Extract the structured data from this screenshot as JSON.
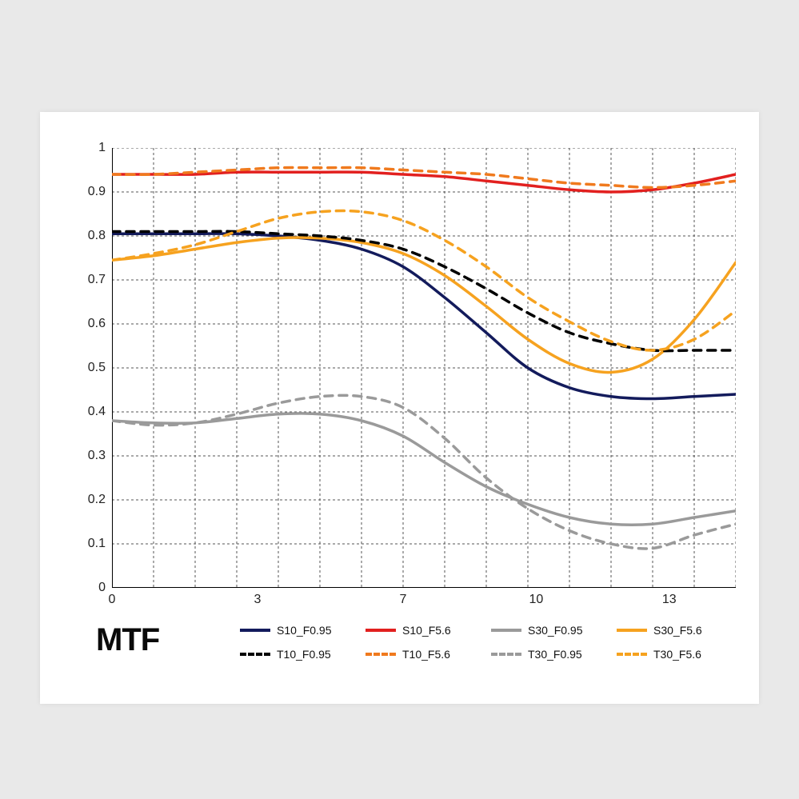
{
  "title": "MTF",
  "chart": {
    "type": "line",
    "background_color": "#ffffff",
    "page_background": "#e9e9e9",
    "grid_color": "#555555",
    "axis_color": "#000000",
    "axis_width": 2,
    "grid_dash": "3,3",
    "xlim": [
      0,
      15
    ],
    "ylim": [
      0,
      1
    ],
    "y_ticks": [
      0,
      0.1,
      0.2,
      0.3,
      0.4,
      0.5,
      0.6,
      0.7,
      0.8,
      0.9,
      1
    ],
    "y_tick_labels": [
      "0",
      "0.1",
      "0.2",
      "0.3",
      "0.4",
      "0.5",
      "0.6",
      "0.7",
      "0.8",
      "0.9",
      "1"
    ],
    "x_grid_positions": [
      0,
      1,
      2,
      3,
      4,
      5,
      6,
      7,
      8,
      9,
      10,
      11,
      12,
      13,
      14,
      15
    ],
    "x_tick_labels": [
      {
        "pos": 0,
        "label": "0"
      },
      {
        "pos": 3.5,
        "label": "3"
      },
      {
        "pos": 7,
        "label": "7"
      },
      {
        "pos": 10.2,
        "label": "10"
      },
      {
        "pos": 13.4,
        "label": "13"
      }
    ],
    "tick_fontsize": 16,
    "legend_fontsize": 14,
    "title_fontsize": 40,
    "title_weight": 900,
    "line_width": 3.5,
    "series": [
      {
        "id": "S10_F0.95",
        "label": "S10_F0.95",
        "color": "#131b5c",
        "dash": "none",
        "points": [
          [
            0,
            0.805
          ],
          [
            1,
            0.805
          ],
          [
            2,
            0.805
          ],
          [
            3,
            0.805
          ],
          [
            4,
            0.8
          ],
          [
            5,
            0.79
          ],
          [
            6,
            0.77
          ],
          [
            7,
            0.73
          ],
          [
            8,
            0.66
          ],
          [
            9,
            0.58
          ],
          [
            10,
            0.5
          ],
          [
            11,
            0.455
          ],
          [
            12,
            0.435
          ],
          [
            13,
            0.43
          ],
          [
            14,
            0.435
          ],
          [
            15,
            0.44
          ]
        ]
      },
      {
        "id": "S10_F5.6",
        "label": "S10_F5.6",
        "color": "#e2201f",
        "dash": "none",
        "points": [
          [
            0,
            0.94
          ],
          [
            1,
            0.94
          ],
          [
            2,
            0.94
          ],
          [
            3,
            0.945
          ],
          [
            4,
            0.945
          ],
          [
            5,
            0.945
          ],
          [
            6,
            0.945
          ],
          [
            7,
            0.94
          ],
          [
            8,
            0.935
          ],
          [
            9,
            0.925
          ],
          [
            10,
            0.915
          ],
          [
            11,
            0.905
          ],
          [
            12,
            0.9
          ],
          [
            13,
            0.905
          ],
          [
            14,
            0.92
          ],
          [
            15,
            0.94
          ]
        ]
      },
      {
        "id": "S30_F0.95",
        "label": "S30_F0.95",
        "color": "#9a9a9a",
        "dash": "none",
        "points": [
          [
            0,
            0.38
          ],
          [
            1,
            0.375
          ],
          [
            2,
            0.375
          ],
          [
            3,
            0.385
          ],
          [
            4,
            0.395
          ],
          [
            5,
            0.395
          ],
          [
            6,
            0.38
          ],
          [
            7,
            0.345
          ],
          [
            8,
            0.285
          ],
          [
            9,
            0.23
          ],
          [
            10,
            0.19
          ],
          [
            11,
            0.16
          ],
          [
            12,
            0.145
          ],
          [
            13,
            0.145
          ],
          [
            14,
            0.16
          ],
          [
            15,
            0.175
          ]
        ]
      },
      {
        "id": "S30_F5.6",
        "label": "S30_F5.6",
        "color": "#f6a21f",
        "dash": "none",
        "points": [
          [
            0,
            0.745
          ],
          [
            1,
            0.755
          ],
          [
            2,
            0.77
          ],
          [
            3,
            0.785
          ],
          [
            4,
            0.795
          ],
          [
            5,
            0.795
          ],
          [
            6,
            0.785
          ],
          [
            7,
            0.76
          ],
          [
            8,
            0.71
          ],
          [
            9,
            0.64
          ],
          [
            10,
            0.565
          ],
          [
            11,
            0.51
          ],
          [
            12,
            0.49
          ],
          [
            13,
            0.52
          ],
          [
            14,
            0.61
          ],
          [
            15,
            0.74
          ]
        ]
      },
      {
        "id": "T10_F0.95",
        "label": "T10_F0.95",
        "color": "#000000",
        "dash": "10,8",
        "points": [
          [
            0,
            0.81
          ],
          [
            1,
            0.81
          ],
          [
            2,
            0.81
          ],
          [
            3,
            0.81
          ],
          [
            4,
            0.805
          ],
          [
            5,
            0.8
          ],
          [
            6,
            0.79
          ],
          [
            7,
            0.77
          ],
          [
            8,
            0.73
          ],
          [
            9,
            0.68
          ],
          [
            10,
            0.625
          ],
          [
            11,
            0.58
          ],
          [
            12,
            0.555
          ],
          [
            13,
            0.54
          ],
          [
            14,
            0.54
          ],
          [
            15,
            0.54
          ]
        ]
      },
      {
        "id": "T10_F5.6",
        "label": "T10_F5.6",
        "color": "#f07a1e",
        "dash": "10,8",
        "points": [
          [
            0,
            0.94
          ],
          [
            1,
            0.94
          ],
          [
            2,
            0.945
          ],
          [
            3,
            0.95
          ],
          [
            4,
            0.955
          ],
          [
            5,
            0.955
          ],
          [
            6,
            0.955
          ],
          [
            7,
            0.95
          ],
          [
            8,
            0.945
          ],
          [
            9,
            0.94
          ],
          [
            10,
            0.93
          ],
          [
            11,
            0.92
          ],
          [
            12,
            0.915
          ],
          [
            13,
            0.91
          ],
          [
            14,
            0.915
          ],
          [
            15,
            0.925
          ]
        ]
      },
      {
        "id": "T30_F0.95",
        "label": "T30_F0.95",
        "color": "#9a9a9a",
        "dash": "10,8",
        "points": [
          [
            0,
            0.38
          ],
          [
            1,
            0.37
          ],
          [
            2,
            0.375
          ],
          [
            3,
            0.395
          ],
          [
            4,
            0.42
          ],
          [
            5,
            0.435
          ],
          [
            6,
            0.435
          ],
          [
            7,
            0.41
          ],
          [
            8,
            0.34
          ],
          [
            9,
            0.25
          ],
          [
            10,
            0.18
          ],
          [
            11,
            0.13
          ],
          [
            12,
            0.1
          ],
          [
            13,
            0.09
          ],
          [
            14,
            0.12
          ],
          [
            15,
            0.145
          ]
        ]
      },
      {
        "id": "T30_F5.6",
        "label": "T30_F5.6",
        "color": "#f6a21f",
        "dash": "10,8",
        "points": [
          [
            0,
            0.745
          ],
          [
            1,
            0.76
          ],
          [
            2,
            0.78
          ],
          [
            3,
            0.81
          ],
          [
            4,
            0.84
          ],
          [
            5,
            0.855
          ],
          [
            6,
            0.855
          ],
          [
            7,
            0.835
          ],
          [
            8,
            0.79
          ],
          [
            9,
            0.73
          ],
          [
            10,
            0.66
          ],
          [
            11,
            0.605
          ],
          [
            12,
            0.56
          ],
          [
            13,
            0.54
          ],
          [
            14,
            0.565
          ],
          [
            15,
            0.63
          ]
        ]
      }
    ]
  }
}
